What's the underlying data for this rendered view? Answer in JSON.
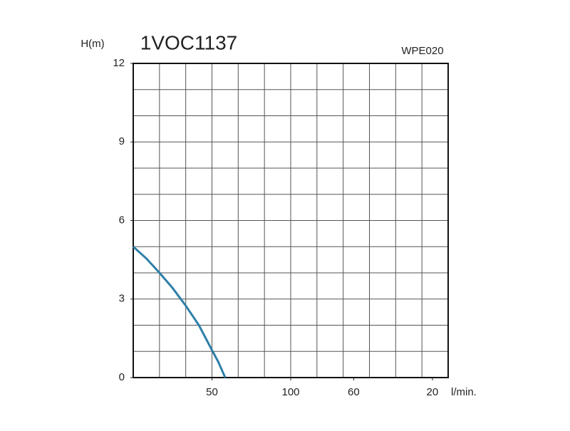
{
  "chart_data": {
    "type": "line",
    "title": "1VOC1137",
    "subtitle": "WPE020",
    "y_label": "H(m)",
    "x_label": "l/min.",
    "x": [
      0,
      8.3,
      16.7,
      25,
      33.3,
      41.7,
      50,
      54,
      58.4
    ],
    "series": [
      {
        "color": "#2e7fa8",
        "values": [
          5,
          4.55,
          4.0,
          3.42,
          2.75,
          2.0,
          1.05,
          0.6,
          0
        ]
      }
    ],
    "xlim": [
      0,
      200
    ],
    "xticks": [
      50,
      100,
      {
        "value": 140,
        "label": "60"
      },
      {
        "value": 190,
        "label": "20"
      }
    ],
    "ylim": [
      0,
      12
    ],
    "yticks": [
      0,
      3,
      6,
      9,
      12
    ],
    "grid": true
  }
}
